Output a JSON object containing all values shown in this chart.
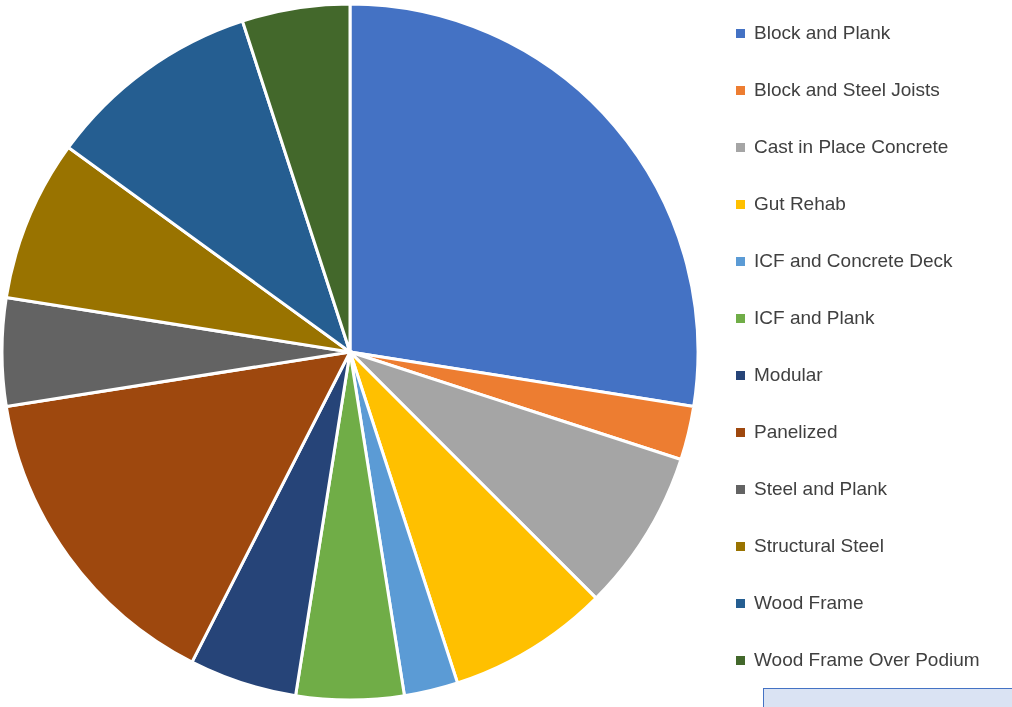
{
  "chart_data": {
    "type": "pie",
    "categories": [
      "Block and Plank",
      "Block and Steel Joists",
      "Cast in Place Concrete",
      "Gut Rehab",
      "ICF and Concrete Deck",
      "ICF and Plank",
      "Modular",
      "Panelized",
      "Steel and Plank",
      "Structural Steel",
      "Wood Frame",
      "Wood Frame Over Podium"
    ],
    "values": [
      27.5,
      2.5,
      7.5,
      7.5,
      2.5,
      5,
      5,
      15,
      5,
      7.5,
      10,
      5
    ],
    "colors": [
      "#4472c4",
      "#ed7d31",
      "#a5a5a5",
      "#ffc000",
      "#5b9bd5",
      "#70ad47",
      "#264478",
      "#9e480e",
      "#636363",
      "#997300",
      "#255e91",
      "#43682b"
    ],
    "legend": "right"
  }
}
